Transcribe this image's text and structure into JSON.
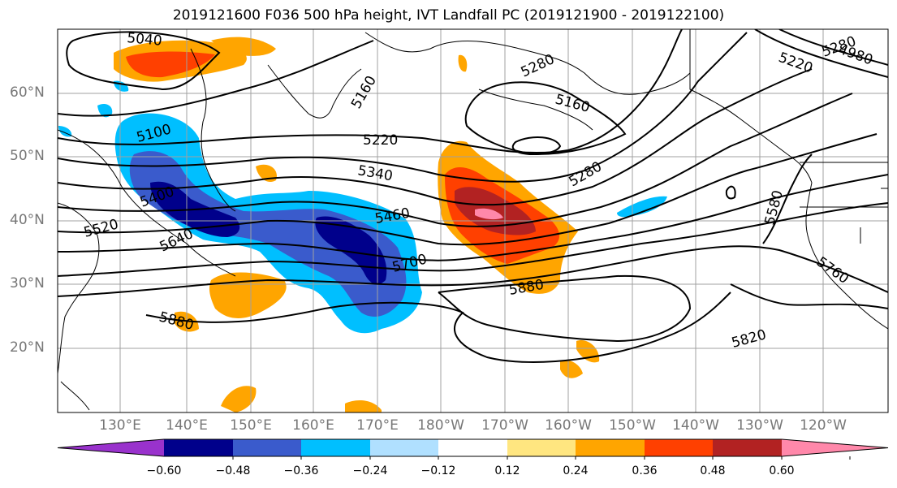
{
  "title": "2019121600 F036 500 hPa height, IVT Landfall PC (2019121900 - 2019122100)",
  "map": {
    "lat_ticks": [
      "60°N",
      "50°N",
      "40°N",
      "30°N",
      "20°N"
    ],
    "lon_ticks": [
      "130°E",
      "140°E",
      "150°E",
      "160°E",
      "170°E",
      "180°W",
      "170°W",
      "160°W",
      "150°W",
      "140°W",
      "130°W",
      "120°W"
    ],
    "contour_labels": [
      "5040",
      "5100",
      "5160",
      "5220",
      "5280",
      "5160",
      "5280",
      "5340",
      "5400",
      "5460",
      "5520",
      "5640",
      "5700",
      "5880",
      "5880",
      "5820",
      "5580",
      "5760",
      "5220",
      "5280",
      "4980"
    ],
    "line_color": "#000000",
    "coast_color": "#000000",
    "grid_color": "#a0a0a0"
  },
  "colorbar": {
    "tick_labels": [
      "−0.60",
      "−0.48",
      "−0.36",
      "−0.24",
      "−0.12",
      "0.12",
      "0.24",
      "0.36",
      "0.48",
      "0.60"
    ],
    "colors": [
      "#9932cc",
      "#00008b",
      "#3a5bcc",
      "#00bfff",
      "#b0e0ff",
      "#ffffff",
      "#ffe680",
      "#ffa500",
      "#ff4000",
      "#b22222",
      "#ff88aa"
    ]
  }
}
